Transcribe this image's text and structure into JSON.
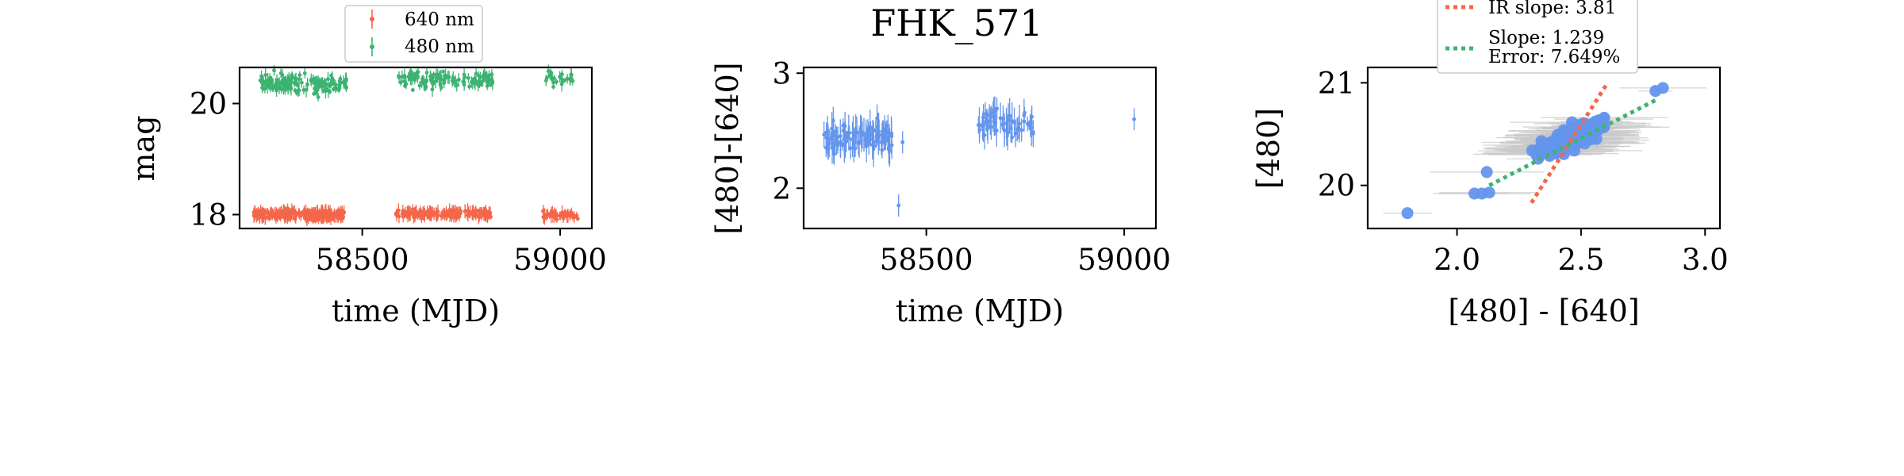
{
  "figure_title": "FHK_571",
  "colors": {
    "red": "#f4664a",
    "green": "#3cb371",
    "blue": "#6495ed",
    "gray": "#c8c8c8"
  },
  "chart_data": [
    {
      "id": "panel-light-curve",
      "type": "scatter",
      "title": "",
      "xlabel": "time (MJD)",
      "ylabel": "mag",
      "xlim": [
        58190,
        59080
      ],
      "ylim": [
        20.65,
        17.75
      ],
      "y_inverted": true,
      "xticks": [
        58500,
        59000
      ],
      "yticks": [
        18,
        20
      ],
      "grid": false,
      "legend": {
        "placement": "top-center-above",
        "entries": [
          "640 nm",
          "480 nm"
        ]
      },
      "series": [
        {
          "name": "640 nm",
          "color": "red",
          "segments": [
            {
              "x_range": [
                58225,
                58455
              ],
              "y_center": 18.0,
              "y_spread": 0.13,
              "count": 280
            },
            {
              "x_range": [
                58580,
                58830
              ],
              "y_center": 18.02,
              "y_spread": 0.1,
              "count": 180
            },
            {
              "x_range": [
                58955,
                59045
              ],
              "y_center": 18.0,
              "y_spread": 0.12,
              "count": 45
            }
          ]
        },
        {
          "name": "480 nm",
          "color": "green",
          "segments": [
            {
              "x_range": [
                58240,
                58460
              ],
              "y_center": 20.35,
              "y_spread": 0.3,
              "count": 150
            },
            {
              "x_range": [
                58590,
                58830
              ],
              "y_center": 20.42,
              "y_spread": 0.28,
              "count": 110
            },
            {
              "x_range": [
                58955,
                59040
              ],
              "y_center": 20.45,
              "y_spread": 0.25,
              "count": 25
            }
          ]
        }
      ]
    },
    {
      "id": "panel-color-curve",
      "type": "scatter",
      "title": "FHK_571",
      "xlabel": "time (MJD)",
      "ylabel": "[480]-[640]",
      "xlim": [
        58190,
        59080
      ],
      "ylim": [
        3.05,
        1.65
      ],
      "y_inverted": true,
      "xticks": [
        58500,
        59000
      ],
      "yticks": [
        2,
        3
      ],
      "grid": false,
      "series": [
        {
          "name": "",
          "color": "blue",
          "segments": [
            {
              "x_range": [
                58240,
                58420
              ],
              "y_center": 2.45,
              "y_spread": 0.22,
              "count": 120
            },
            {
              "x_range": [
                58630,
                58770
              ],
              "y_center": 2.55,
              "y_spread": 0.2,
              "count": 60
            }
          ],
          "points": [
            {
              "x": 58430,
              "y": 1.85
            },
            {
              "x": 58440,
              "y": 2.4
            },
            {
              "x": 59025,
              "y": 2.6
            }
          ]
        }
      ]
    },
    {
      "id": "panel-color-magnitude",
      "type": "scatter",
      "title": "",
      "xlabel": "[480] - [640]",
      "ylabel": "[480]",
      "xlim": [
        1.64,
        3.06
      ],
      "ylim": [
        21.15,
        19.58
      ],
      "y_inverted": true,
      "xticks": [
        2.0,
        2.5,
        3.0
      ],
      "yticks": [
        20,
        21
      ],
      "grid": false,
      "legend": {
        "placement": "top-center-above",
        "entries": [
          {
            "label": "IR slope: 3.81",
            "color": "red",
            "style": "dotted"
          },
          {
            "label": "Slope: 1.239\nError: 7.649%",
            "color": "green",
            "style": "dotted"
          }
        ]
      },
      "cloud": {
        "x_center": 2.45,
        "y_center": 20.45,
        "count": 170
      },
      "points": [
        {
          "x": 1.8,
          "y": 19.73
        },
        {
          "x": 2.07,
          "y": 19.92
        },
        {
          "x": 2.1,
          "y": 19.92
        },
        {
          "x": 2.13,
          "y": 19.93
        },
        {
          "x": 2.12,
          "y": 20.13
        },
        {
          "x": 2.8,
          "y": 20.92
        },
        {
          "x": 2.83,
          "y": 20.95
        }
      ],
      "fit_lines": [
        {
          "name": "IR slope",
          "slope": 3.81,
          "color": "red",
          "x_range": [
            2.3,
            2.6
          ],
          "y_at_x0": [
            2.3,
            19.83
          ]
        },
        {
          "name": "Slope",
          "slope": 1.239,
          "color": "green",
          "x_range": [
            2.13,
            2.8
          ],
          "y_at_x0": [
            2.13,
            20.0
          ]
        }
      ]
    }
  ]
}
